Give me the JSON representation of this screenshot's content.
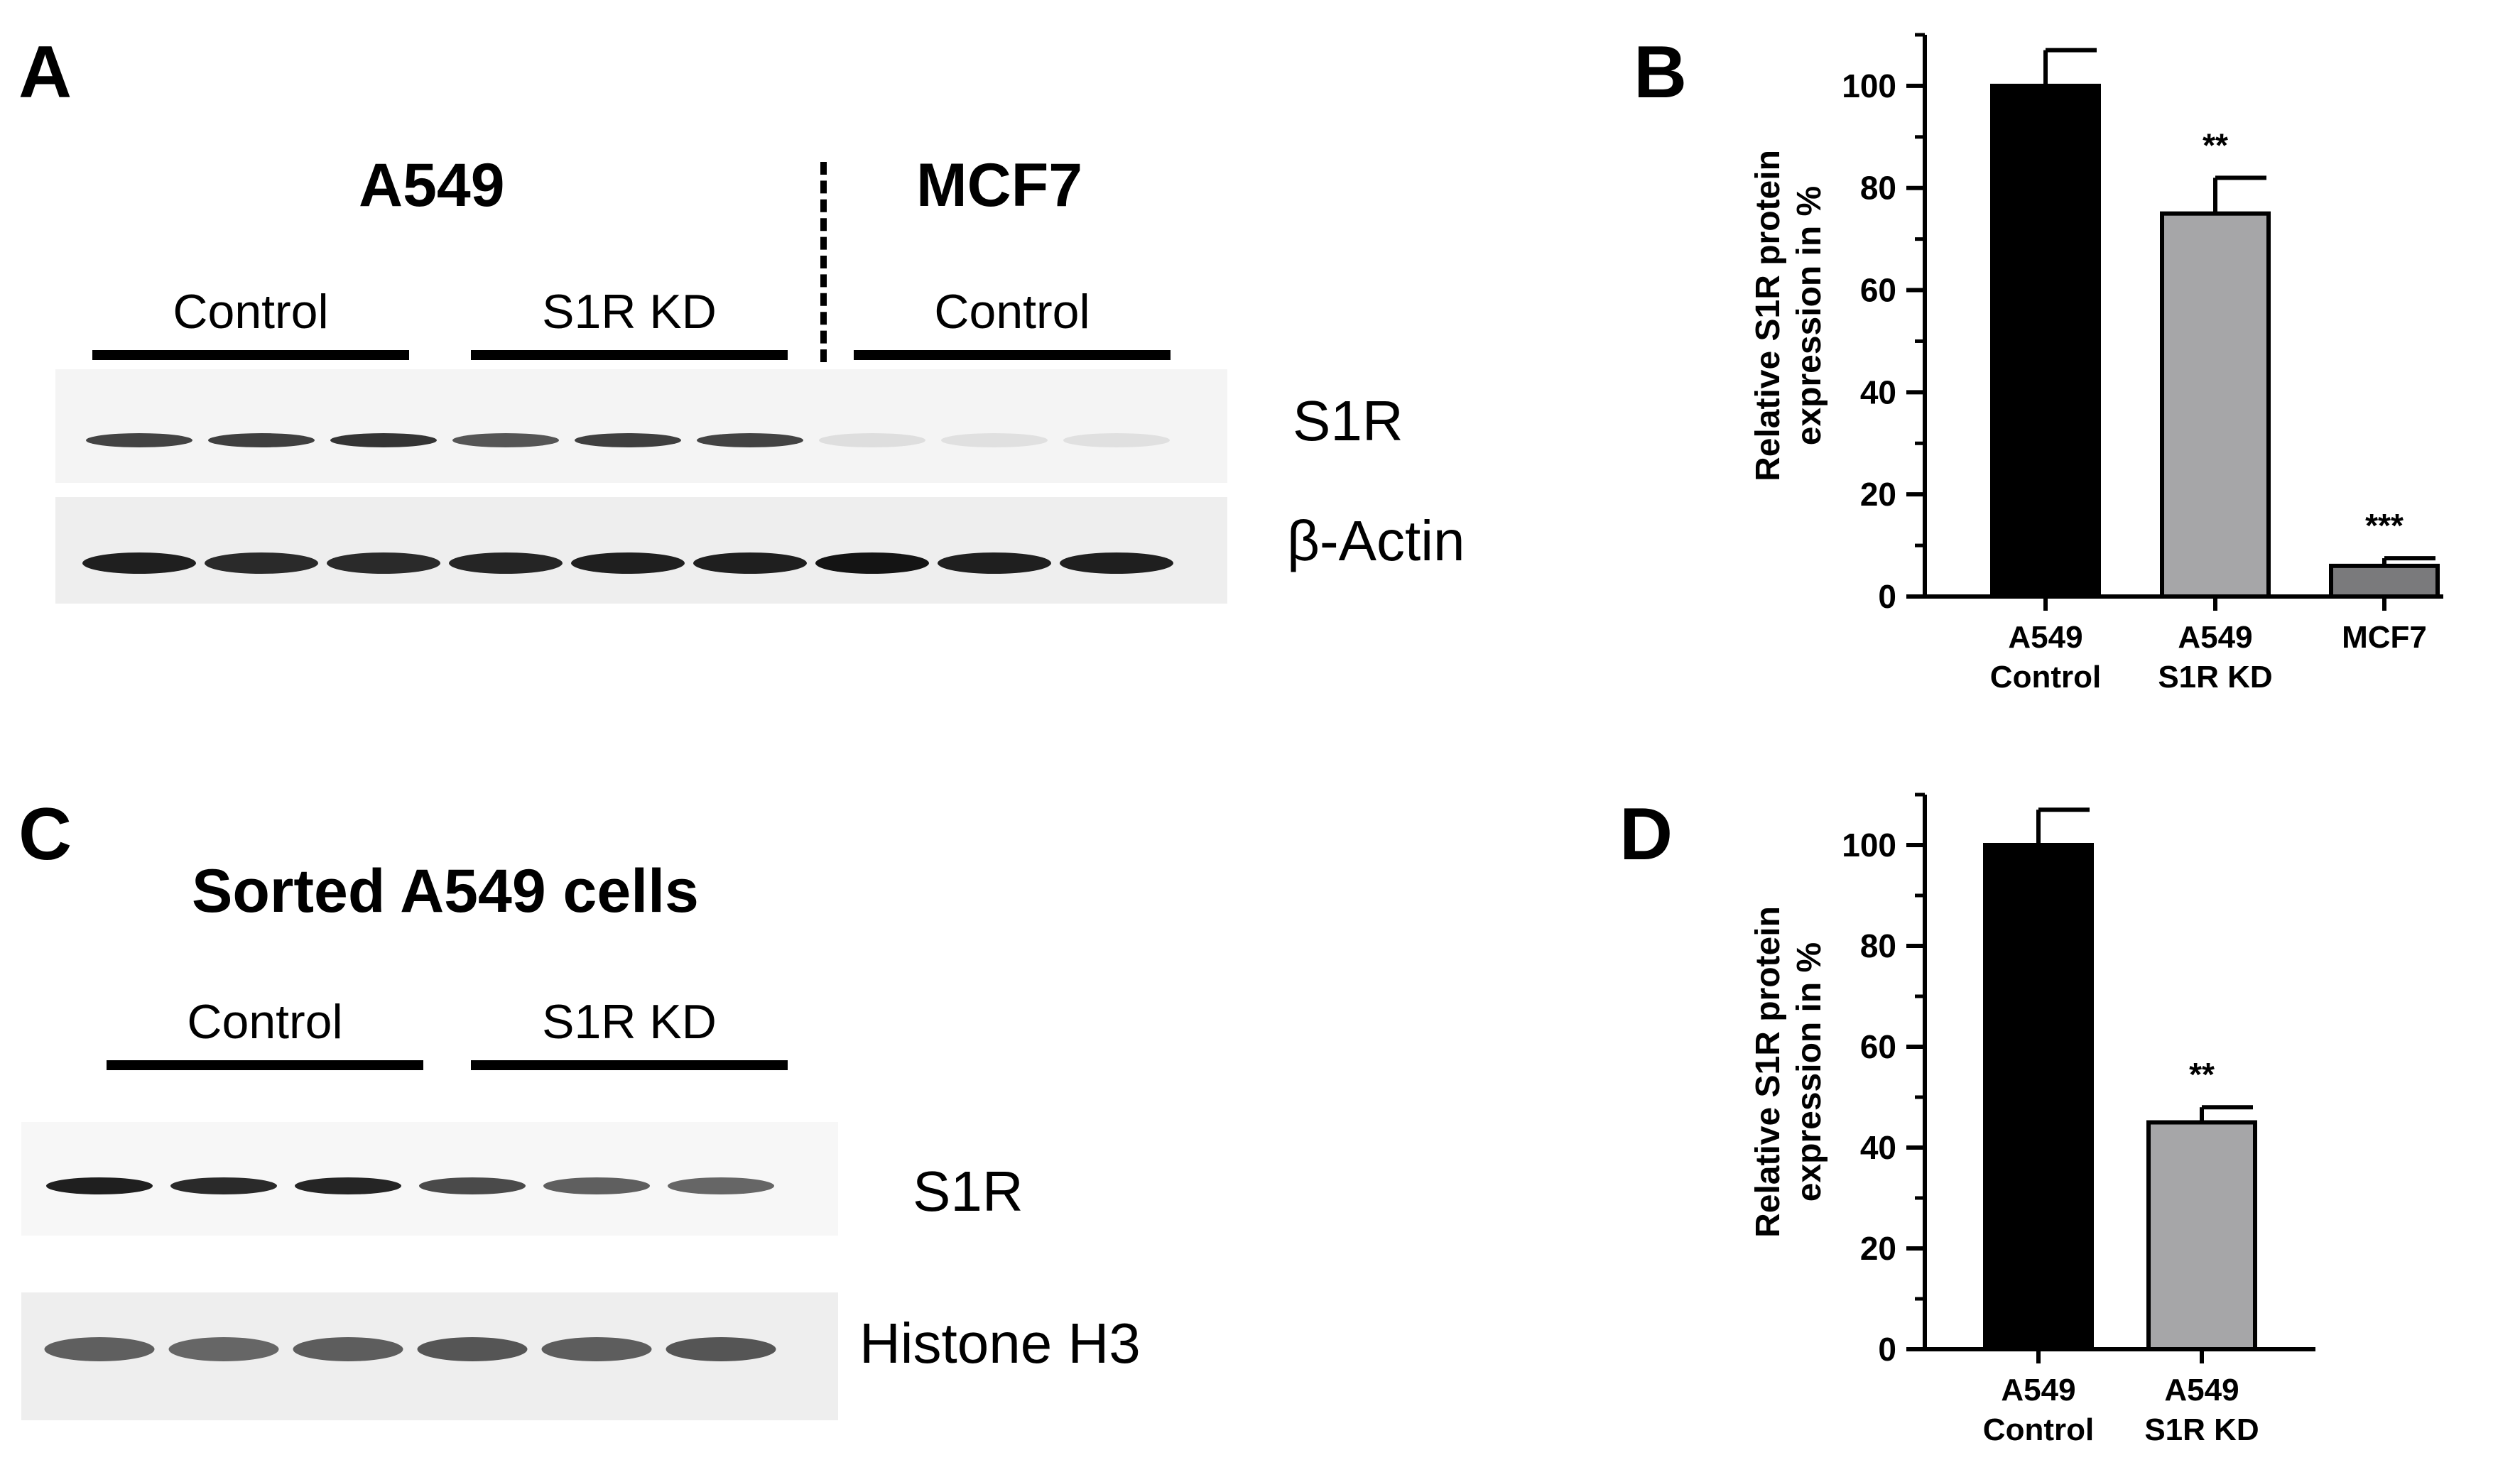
{
  "panels": {
    "A": {
      "letter": "A",
      "title_left": "A549",
      "title_right": "MCF7",
      "groups": [
        "Control",
        "S1R KD",
        "Control"
      ],
      "bands": [
        "S1R",
        "β-Actin"
      ],
      "blot": {
        "s1r_intensity": [
          0.78,
          0.8,
          0.85,
          0.7,
          0.8,
          0.78,
          0.06,
          0.05,
          0.05
        ],
        "actin_intensity": [
          0.95,
          0.9,
          0.9,
          0.92,
          0.95,
          0.95,
          1.0,
          0.95,
          0.95
        ]
      }
    },
    "B": {
      "letter": "B"
    },
    "C": {
      "letter": "C",
      "title": "Sorted A549 cells",
      "groups": [
        "Control",
        "S1R KD"
      ],
      "bands": [
        "S1R",
        "Histone H3"
      ],
      "blot": {
        "s1r_intensity": [
          0.95,
          0.9,
          0.92,
          0.75,
          0.65,
          0.62
        ],
        "h3_intensity": [
          0.65,
          0.62,
          0.66,
          0.7,
          0.66,
          0.7
        ]
      }
    },
    "D": {
      "letter": "D"
    }
  },
  "chart_data": [
    {
      "type": "bar",
      "panel": "B",
      "categories": [
        [
          "A549",
          "Control"
        ],
        [
          "A549",
          "S1R KD"
        ],
        [
          "MCF7"
        ]
      ],
      "values": [
        100,
        75,
        6
      ],
      "errors": [
        7,
        7,
        1.5
      ],
      "significance": [
        "",
        "**",
        "***"
      ],
      "bar_colors": [
        "#000000",
        "#a6a6a8",
        "#7a7a7c"
      ],
      "ylabel": [
        "Relative S1R protein",
        "expression in %"
      ],
      "ylim": [
        0,
        110
      ],
      "yticks": [
        0,
        20,
        40,
        60,
        80,
        100
      ],
      "minor_step": 10
    },
    {
      "type": "bar",
      "panel": "D",
      "categories": [
        [
          "A549",
          "Control"
        ],
        [
          "A549",
          "S1R KD"
        ]
      ],
      "values": [
        100,
        45
      ],
      "errors": [
        7,
        3
      ],
      "significance": [
        "",
        "**"
      ],
      "bar_colors": [
        "#000000",
        "#a6a6a8"
      ],
      "ylabel": [
        "Relative S1R protein",
        "expression in %"
      ],
      "ylim": [
        0,
        110
      ],
      "yticks": [
        0,
        20,
        40,
        60,
        80,
        100
      ],
      "minor_step": 10
    }
  ]
}
